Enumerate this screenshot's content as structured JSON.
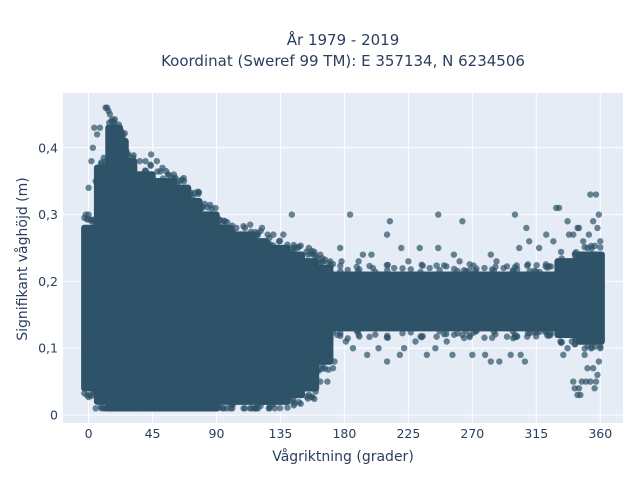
{
  "chart_data": {
    "type": "scatter",
    "title_line1": "År 1979 - 2019",
    "title_line2": "Koordinat (Sweref 99 TM): E 357134, N 6234506",
    "xlabel": "Vågriktning (grader)",
    "ylabel": "Signifikant våghöjd (m)",
    "xlim": [
      -18,
      376
    ],
    "ylim": [
      -0.012,
      0.482
    ],
    "x_ticks": [
      0,
      45,
      90,
      135,
      180,
      225,
      270,
      315,
      360
    ],
    "x_tick_labels": [
      "0",
      "45",
      "90",
      "135",
      "180",
      "225",
      "270",
      "315",
      "360"
    ],
    "y_ticks": [
      0,
      0.1,
      0.2,
      0.3,
      0.4
    ],
    "y_tick_labels": [
      "0",
      "0,1",
      "0,2",
      "0,3",
      "0,4"
    ],
    "grid": true,
    "colors": {
      "background": "#e5ecf6",
      "grid": "#ffffff",
      "marker": "#2e5368",
      "text": "#2a3f5f"
    },
    "series": [
      {
        "marker_opacity": 0.7,
        "dense_bands": [
          {
            "x0": -3,
            "x1": 6,
            "y0": 0.04,
            "y1": 0.28
          },
          {
            "x0": 6,
            "x1": 14,
            "y0": 0.02,
            "y1": 0.37
          },
          {
            "x0": 14,
            "x1": 22,
            "y0": 0.01,
            "y1": 0.43
          },
          {
            "x0": 22,
            "x1": 26,
            "y0": 0.01,
            "y1": 0.41
          },
          {
            "x0": 26,
            "x1": 32,
            "y0": 0.01,
            "y1": 0.38
          },
          {
            "x0": 32,
            "x1": 45,
            "y0": 0.01,
            "y1": 0.36
          },
          {
            "x0": 45,
            "x1": 60,
            "y0": 0.01,
            "y1": 0.35
          },
          {
            "x0": 60,
            "x1": 70,
            "y0": 0.01,
            "y1": 0.34
          },
          {
            "x0": 70,
            "x1": 78,
            "y0": 0.01,
            "y1": 0.32
          },
          {
            "x0": 78,
            "x1": 90,
            "y0": 0.01,
            "y1": 0.3
          },
          {
            "x0": 90,
            "x1": 100,
            "y0": 0.02,
            "y1": 0.28
          },
          {
            "x0": 100,
            "x1": 115,
            "y0": 0.02,
            "y1": 0.27
          },
          {
            "x0": 115,
            "x1": 125,
            "y0": 0.02,
            "y1": 0.26
          },
          {
            "x0": 125,
            "x1": 140,
            "y0": 0.02,
            "y1": 0.25
          },
          {
            "x0": 140,
            "x1": 150,
            "y0": 0.03,
            "y1": 0.24
          },
          {
            "x0": 150,
            "x1": 160,
            "y0": 0.04,
            "y1": 0.23
          },
          {
            "x0": 160,
            "x1": 170,
            "y0": 0.08,
            "y1": 0.22
          },
          {
            "x0": 170,
            "x1": 330,
            "y0": 0.13,
            "y1": 0.21
          },
          {
            "x0": 330,
            "x1": 345,
            "y0": 0.12,
            "y1": 0.23
          },
          {
            "x0": 345,
            "x1": 361,
            "y0": 0.11,
            "y1": 0.24
          }
        ],
        "points": [
          [
            12,
            0.46
          ],
          [
            13,
            0.46
          ],
          [
            14,
            0.455
          ],
          [
            15,
            0.45
          ],
          [
            16,
            0.44
          ],
          [
            18,
            0.43
          ],
          [
            20,
            0.43
          ],
          [
            22,
            0.42
          ],
          [
            4,
            0.43
          ],
          [
            6,
            0.42
          ],
          [
            8,
            0.43
          ],
          [
            3,
            0.4
          ],
          [
            2,
            0.38
          ],
          [
            -2,
            0.3
          ],
          [
            0,
            0.3
          ],
          [
            2,
            0.29
          ],
          [
            5,
            0.35
          ],
          [
            0,
            0.34
          ],
          [
            44,
            0.39
          ],
          [
            40,
            0.38
          ],
          [
            48,
            0.38
          ],
          [
            36,
            0.38
          ],
          [
            52,
            0.37
          ],
          [
            56,
            0.36
          ],
          [
            60,
            0.36
          ],
          [
            64,
            0.35
          ],
          [
            66,
            0.34
          ],
          [
            68,
            0.33
          ],
          [
            72,
            0.33
          ],
          [
            76,
            0.32
          ],
          [
            80,
            0.31
          ],
          [
            85,
            0.3
          ],
          [
            96,
            0.29
          ],
          [
            104,
            0.28
          ],
          [
            110,
            0.28
          ],
          [
            118,
            0.27
          ],
          [
            122,
            0.28
          ],
          [
            126,
            0.27
          ],
          [
            130,
            0.27
          ],
          [
            134,
            0.26
          ],
          [
            137,
            0.27
          ],
          [
            147,
            0.25
          ],
          [
            150,
            0.24
          ],
          [
            155,
            0.25
          ],
          [
            158,
            0.24
          ],
          [
            163,
            0.24
          ],
          [
            143,
            0.3
          ],
          [
            184,
            0.3
          ],
          [
            212,
            0.29
          ],
          [
            246,
            0.3
          ],
          [
            263,
            0.29
          ],
          [
            300,
            0.3
          ],
          [
            308,
            0.28
          ],
          [
            177,
            0.25
          ],
          [
            193,
            0.24
          ],
          [
            199,
            0.24
          ],
          [
            210,
            0.27
          ],
          [
            220,
            0.25
          ],
          [
            233,
            0.25
          ],
          [
            246,
            0.25
          ],
          [
            257,
            0.24
          ],
          [
            261,
            0.23
          ],
          [
            283,
            0.24
          ],
          [
            287,
            0.23
          ],
          [
            292,
            0.22
          ],
          [
            303,
            0.25
          ],
          [
            310,
            0.26
          ],
          [
            317,
            0.25
          ],
          [
            322,
            0.27
          ],
          [
            327,
            0.26
          ],
          [
            329,
            0.31
          ],
          [
            331,
            0.31
          ],
          [
            338,
            0.27
          ],
          [
            341,
            0.27
          ],
          [
            353,
            0.33
          ],
          [
            357,
            0.33
          ],
          [
            359,
            0.3
          ],
          [
            345,
            0.28
          ],
          [
            355,
            0.29
          ],
          [
            165,
            0.23
          ],
          [
            170,
            0.23
          ],
          [
            178,
            0.23
          ],
          [
            190,
            0.23
          ],
          [
            200,
            0.22
          ],
          [
            215,
            0.22
          ],
          [
            225,
            0.23
          ],
          [
            240,
            0.22
          ],
          [
            175,
            0.12
          ],
          [
            181,
            0.11
          ],
          [
            186,
            0.1
          ],
          [
            190,
            0.12
          ],
          [
            196,
            0.09
          ],
          [
            204,
            0.1
          ],
          [
            210,
            0.08
          ],
          [
            219,
            0.09
          ],
          [
            222,
            0.1
          ],
          [
            230,
            0.11
          ],
          [
            238,
            0.09
          ],
          [
            244,
            0.1
          ],
          [
            252,
            0.11
          ],
          [
            256,
            0.09
          ],
          [
            263,
            0.12
          ],
          [
            270,
            0.09
          ],
          [
            279,
            0.09
          ],
          [
            283,
            0.08
          ],
          [
            289,
            0.08
          ],
          [
            297,
            0.09
          ],
          [
            300,
            0.12
          ],
          [
            304,
            0.09
          ],
          [
            307,
            0.08
          ],
          [
            170,
            0.09
          ],
          [
            165,
            0.1
          ],
          [
            161,
            0.08
          ],
          [
            158,
            0.06
          ],
          [
            163,
            0.05
          ],
          [
            168,
            0.05
          ],
          [
            172,
            0.07
          ],
          [
            173,
            0.08
          ],
          [
            155,
            0.03
          ],
          [
            150,
            0.03
          ],
          [
            145,
            0.04
          ],
          [
            140,
            0.03
          ],
          [
            131,
            0.01
          ],
          [
            125,
            0.02
          ],
          [
            118,
            0.01
          ],
          [
            110,
            0.01
          ],
          [
            100,
            0.01
          ],
          [
            92,
            0.02
          ],
          [
            84,
            0.01
          ],
          [
            75,
            0.02
          ],
          [
            70,
            0.01
          ],
          [
            62,
            0.01
          ],
          [
            58,
            0.02
          ],
          [
            50,
            0.01
          ],
          [
            5,
            0.01
          ],
          [
            1,
            0.03
          ],
          [
            2,
            0.05
          ],
          [
            -1,
            0.07
          ],
          [
            1,
            0.1
          ],
          [
            -2,
            0.12
          ],
          [
            318,
            0.13
          ],
          [
            325,
            0.12
          ],
          [
            332,
            0.11
          ],
          [
            334,
            0.09
          ],
          [
            337,
            0.1
          ],
          [
            341,
            0.05
          ],
          [
            342,
            0.04
          ],
          [
            345,
            0.04
          ],
          [
            347,
            0.05
          ],
          [
            349,
            0.09
          ],
          [
            351,
            0.07
          ],
          [
            353,
            0.05
          ],
          [
            355,
            0.07
          ],
          [
            356,
            0.04
          ],
          [
            357,
            0.05
          ],
          [
            358,
            0.06
          ],
          [
            359,
            0.08
          ],
          [
            360,
            0.1
          ],
          [
            344,
            0.03
          ],
          [
            346,
            0.03
          ],
          [
            350,
            0.05
          ],
          [
            336,
            0.12
          ],
          [
            340,
            0.11
          ],
          [
            343,
            0.14
          ],
          [
            348,
            0.13
          ],
          [
            352,
            0.12
          ],
          [
            356,
            0.11
          ],
          [
            359,
            0.12
          ],
          [
            337,
            0.29
          ],
          [
            344,
            0.28
          ],
          [
            348,
            0.26
          ],
          [
            352,
            0.27
          ],
          [
            358,
            0.28
          ],
          [
            360,
            0.26
          ]
        ]
      }
    ]
  }
}
